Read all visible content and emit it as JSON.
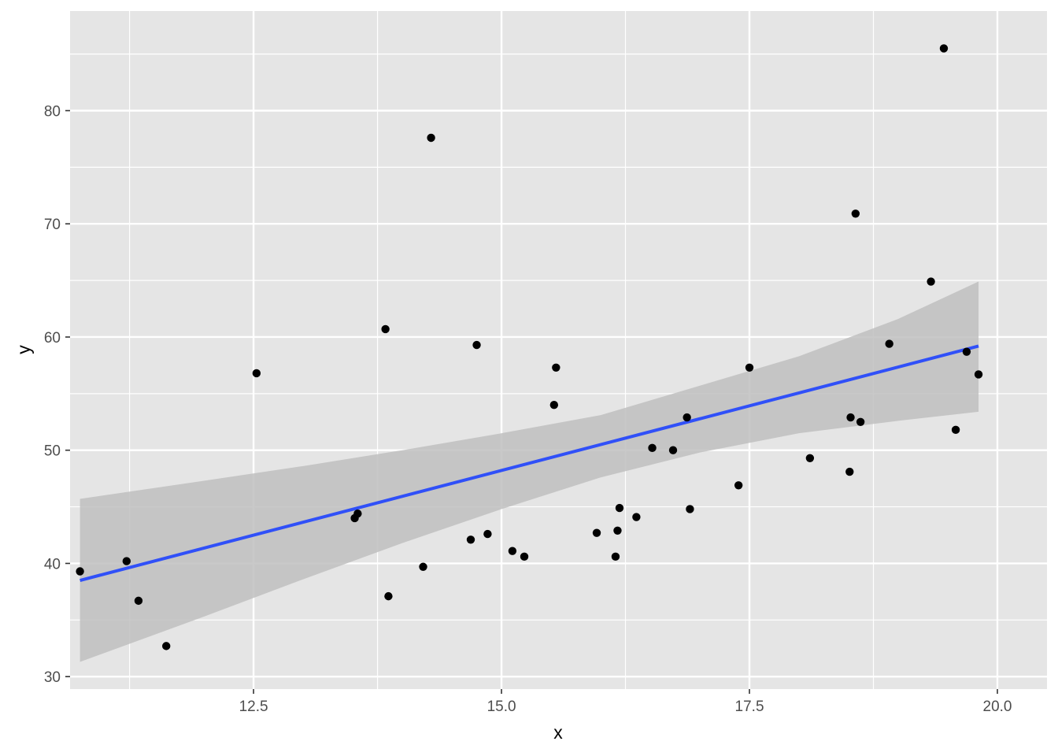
{
  "chart_data": {
    "type": "scatter",
    "xlabel": "x",
    "ylabel": "y",
    "xlim": [
      10.65,
      20.5
    ],
    "ylim": [
      28.9,
      88.8
    ],
    "x_ticks": [
      12.5,
      15.0,
      17.5,
      20.0
    ],
    "x_tick_labels": [
      "12.5",
      "15.0",
      "17.5",
      "20.0"
    ],
    "y_ticks": [
      30,
      40,
      50,
      60,
      70,
      80
    ],
    "y_tick_labels": [
      "30",
      "40",
      "50",
      "60",
      "70",
      "80"
    ],
    "grid": true,
    "colors": {
      "panel": "#e5e5e5",
      "grid": "#ffffff",
      "point": "#000000",
      "fit_line": "#3050f8",
      "confidence_band": "#bfbfbf"
    },
    "points": [
      {
        "x": 10.75,
        "y": 39.3
      },
      {
        "x": 11.22,
        "y": 40.2
      },
      {
        "x": 11.34,
        "y": 36.7
      },
      {
        "x": 11.62,
        "y": 32.7
      },
      {
        "x": 12.53,
        "y": 56.8
      },
      {
        "x": 13.52,
        "y": 44.0
      },
      {
        "x": 13.55,
        "y": 44.4
      },
      {
        "x": 13.83,
        "y": 60.7
      },
      {
        "x": 13.86,
        "y": 37.1
      },
      {
        "x": 14.21,
        "y": 39.7
      },
      {
        "x": 14.29,
        "y": 77.6
      },
      {
        "x": 14.69,
        "y": 42.1
      },
      {
        "x": 14.75,
        "y": 59.3
      },
      {
        "x": 14.86,
        "y": 42.6
      },
      {
        "x": 15.11,
        "y": 41.1
      },
      {
        "x": 15.23,
        "y": 40.6
      },
      {
        "x": 15.53,
        "y": 54.0
      },
      {
        "x": 15.55,
        "y": 57.3
      },
      {
        "x": 15.96,
        "y": 42.7
      },
      {
        "x": 16.15,
        "y": 40.6
      },
      {
        "x": 16.17,
        "y": 42.9
      },
      {
        "x": 16.19,
        "y": 44.9
      },
      {
        "x": 16.36,
        "y": 44.1
      },
      {
        "x": 16.52,
        "y": 50.2
      },
      {
        "x": 16.73,
        "y": 50.0
      },
      {
        "x": 16.87,
        "y": 52.9
      },
      {
        "x": 16.9,
        "y": 44.8
      },
      {
        "x": 17.39,
        "y": 46.9
      },
      {
        "x": 17.5,
        "y": 57.3
      },
      {
        "x": 18.11,
        "y": 49.3
      },
      {
        "x": 18.51,
        "y": 48.1
      },
      {
        "x": 18.52,
        "y": 52.9
      },
      {
        "x": 18.57,
        "y": 70.9
      },
      {
        "x": 18.62,
        "y": 52.5
      },
      {
        "x": 18.91,
        "y": 59.4
      },
      {
        "x": 19.33,
        "y": 64.9
      },
      {
        "x": 19.46,
        "y": 85.5
      },
      {
        "x": 19.58,
        "y": 51.8
      },
      {
        "x": 19.69,
        "y": 58.7
      },
      {
        "x": 19.81,
        "y": 56.7
      }
    ],
    "fit_line": {
      "x": [
        10.75,
        19.81
      ],
      "y": [
        38.5,
        59.2
      ]
    },
    "confidence_band": {
      "x": [
        10.75,
        12.0,
        13.0,
        14.0,
        15.0,
        16.0,
        17.0,
        18.0,
        19.0,
        19.81
      ],
      "upper": [
        45.7,
        47.3,
        48.6,
        50.0,
        51.5,
        53.1,
        55.7,
        58.3,
        61.6,
        64.9
      ],
      "lower": [
        31.3,
        35.3,
        38.6,
        41.8,
        44.8,
        47.6,
        49.8,
        51.5,
        52.6,
        53.4
      ]
    }
  }
}
